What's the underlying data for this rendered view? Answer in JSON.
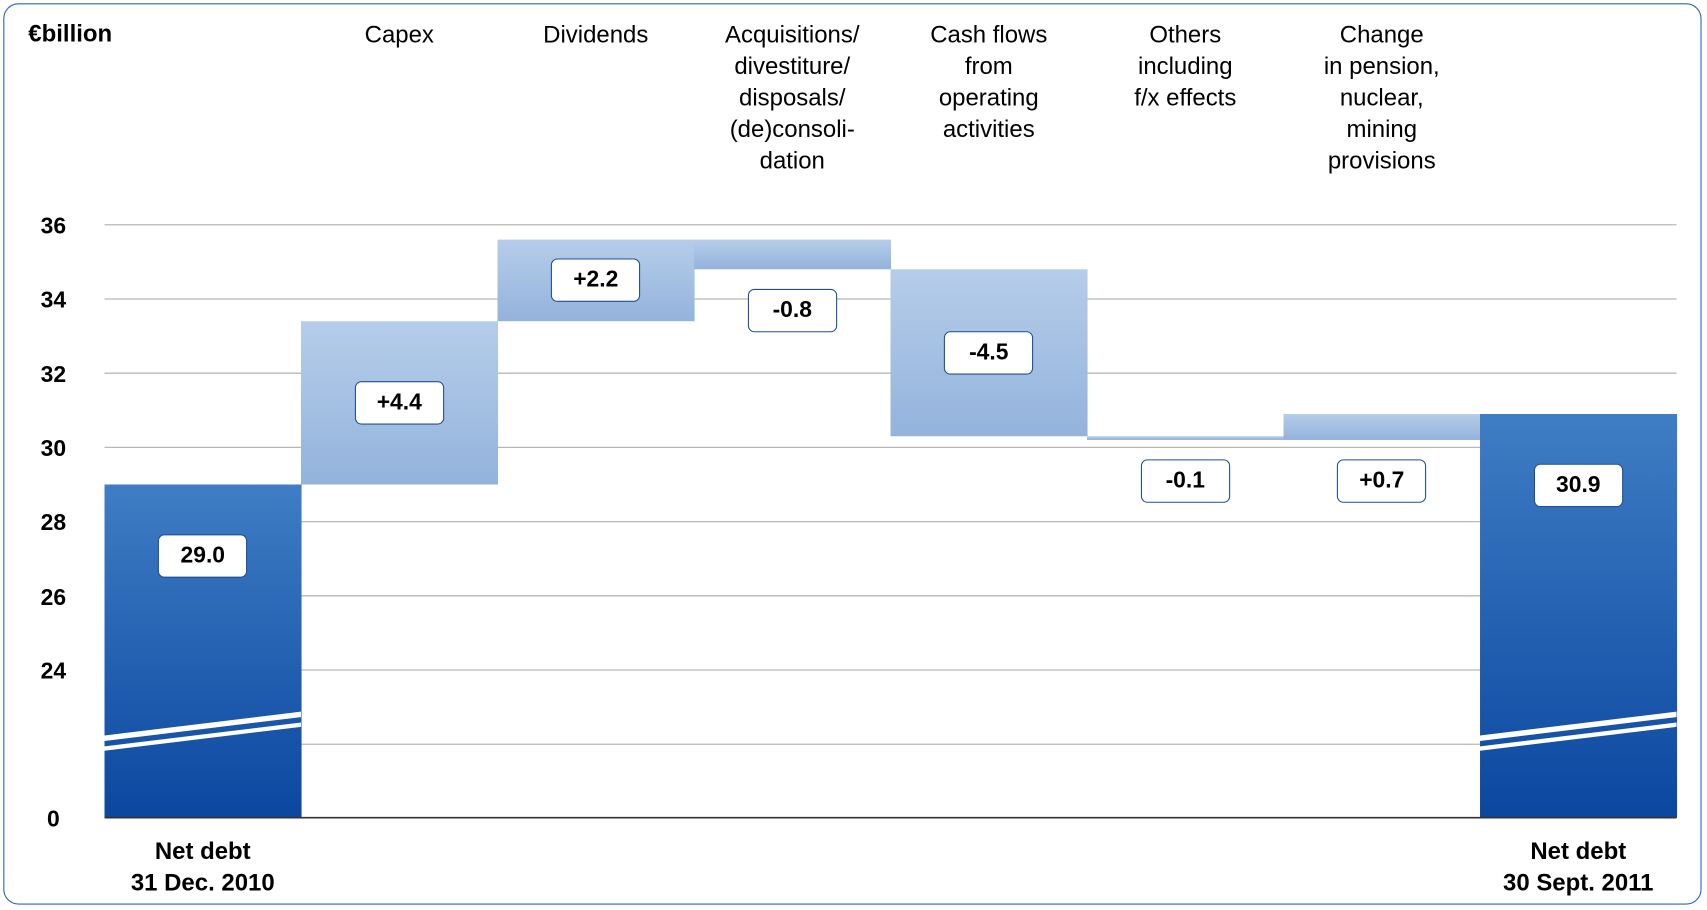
{
  "chart_data": {
    "type": "waterfall",
    "unit_label": "€billion",
    "categories": [
      "Net debt\n31 Dec. 2010",
      "Capex",
      "Dividends",
      "Acquisitions/\ndivestiture/\ndisposals/\n(de)consoli-\ndation",
      "Cash flows\nfrom\noperating\nactivities",
      "Others\nincluding\nf/x effects",
      "Change\nin pension,\nnuclear,\nmining\nprovisions",
      "Net debt\n30 Sept. 2011"
    ],
    "values": [
      29.0,
      4.4,
      2.2,
      -0.8,
      -4.5,
      -0.1,
      0.7,
      30.9
    ],
    "value_labels": [
      "29.0",
      "+4.4",
      "+2.2",
      "-0.8",
      "-4.5",
      "-0.1",
      "+0.7",
      "30.9"
    ],
    "total_color": "#2a66b5",
    "step_color": "#a6c2e5",
    "ylim": [
      0,
      36
    ],
    "yticks": [
      0,
      24,
      26,
      28,
      30,
      32,
      34,
      36
    ],
    "axis_break": true,
    "grid": true
  }
}
